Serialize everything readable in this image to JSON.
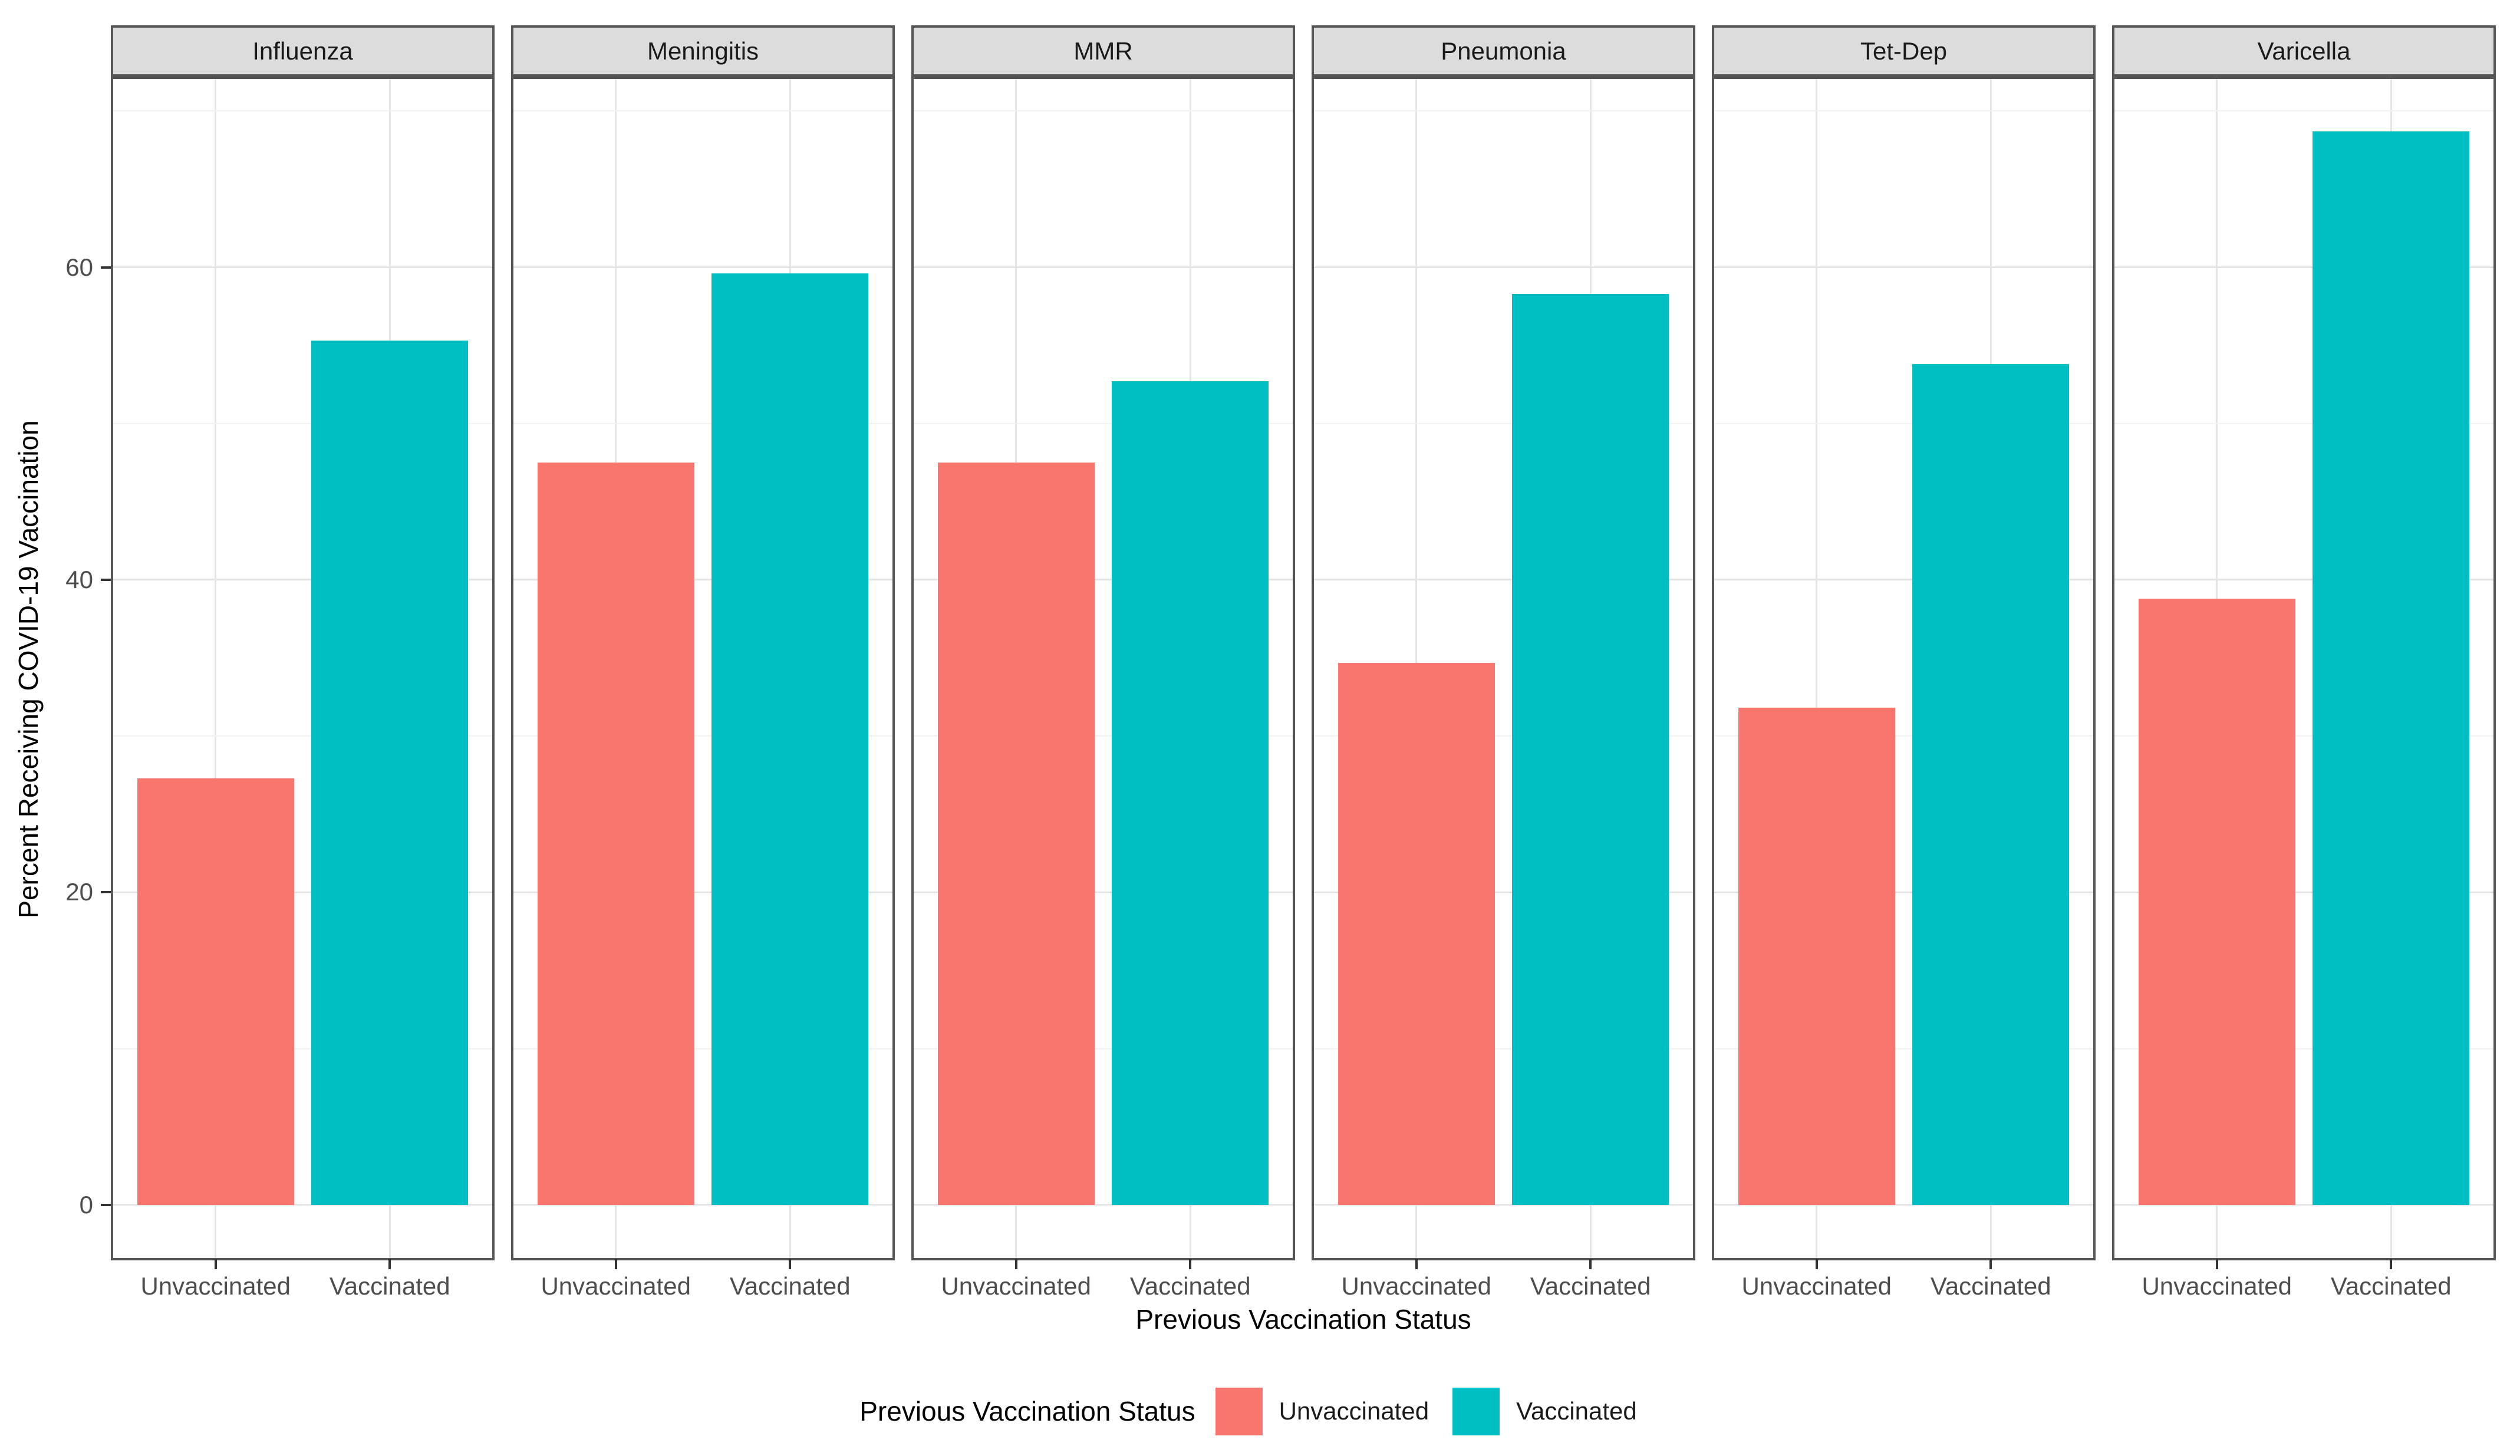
{
  "chart_data": {
    "type": "bar",
    "title": "",
    "facets": [
      "Influenza",
      "Meningitis",
      "MMR",
      "Pneumonia",
      "Tet-Dep",
      "Varicella"
    ],
    "categories": [
      "Unvaccinated",
      "Vaccinated"
    ],
    "series": [
      {
        "name": "Unvaccinated",
        "color": "#F8766D",
        "values": [
          27.3,
          47.5,
          47.5,
          34.7,
          31.8,
          38.8
        ]
      },
      {
        "name": "Vaccinated",
        "color": "#00BFC4",
        "values": [
          55.3,
          59.6,
          52.7,
          58.3,
          53.8,
          68.7
        ]
      }
    ],
    "xlabel": "Previous Vaccination Status",
    "ylabel": "Percent Receiving COVID-19 Vaccination",
    "yticks": [
      0,
      20,
      40,
      60
    ],
    "minor_gridlines": [
      10,
      30,
      50,
      70
    ],
    "ylim": [
      -3.4,
      72.2
    ],
    "grid": "on",
    "legend": {
      "position": "bottom",
      "title": "Previous Vaccination Status",
      "entries": [
        "Unvaccinated",
        "Vaccinated"
      ]
    }
  }
}
